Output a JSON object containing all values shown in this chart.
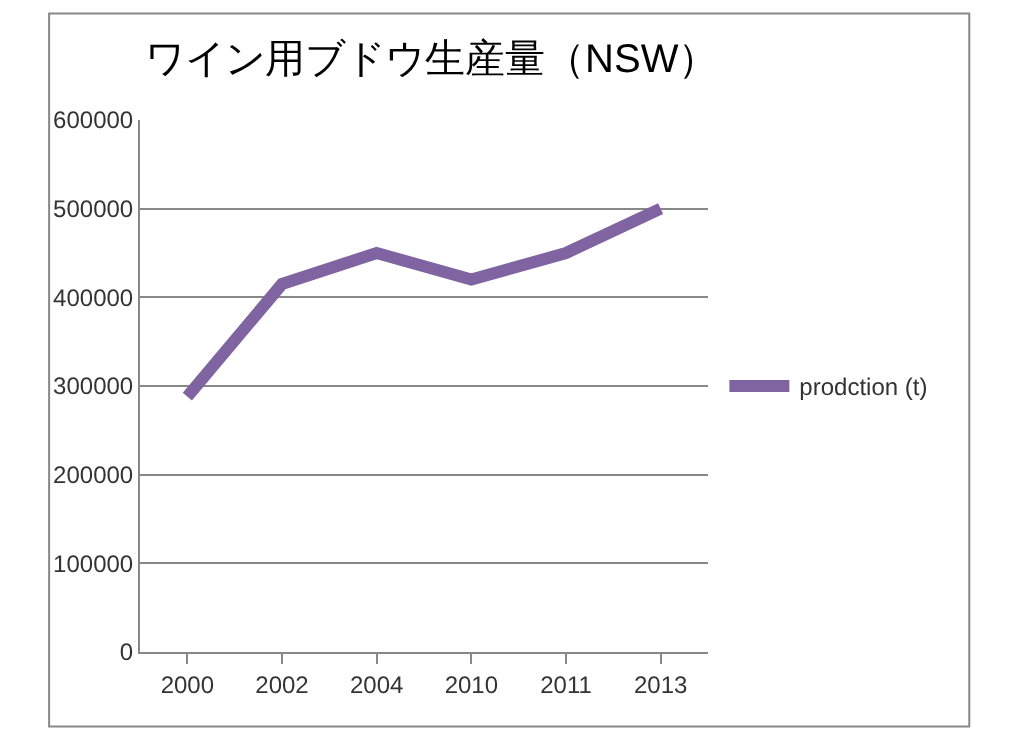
{
  "chart_data": {
    "type": "line",
    "title": "ワイン用ブドウ生産量（NSW）",
    "categories": [
      "2000",
      "2002",
      "2004",
      "2010",
      "2011",
      "2013"
    ],
    "series": [
      {
        "name": "prodction (t)",
        "color": "#8064a2",
        "values": [
          288000,
          415000,
          450000,
          420000,
          450000,
          500000
        ]
      }
    ],
    "ylim": [
      0,
      600000
    ],
    "yticks": [
      0,
      100000,
      200000,
      300000,
      400000,
      500000,
      600000
    ],
    "grid": "y",
    "legend": "right",
    "marker": "none",
    "line_style": "solid"
  }
}
